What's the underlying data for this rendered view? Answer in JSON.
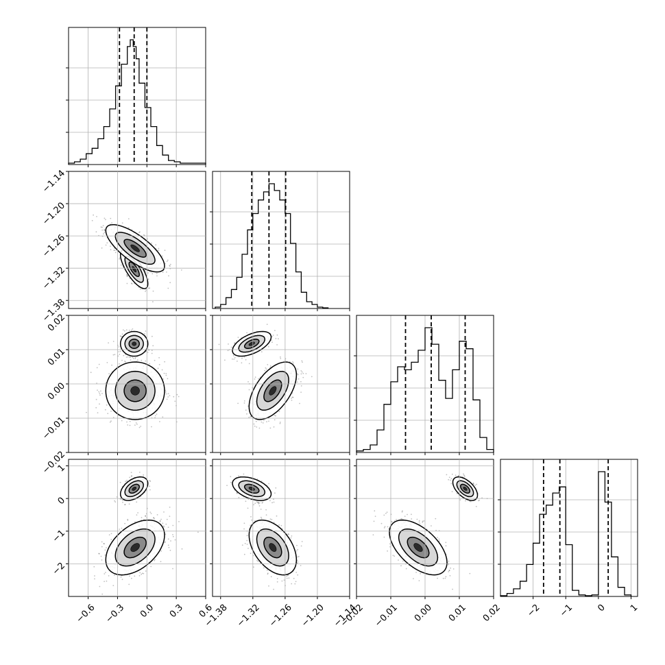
{
  "chart_data": {
    "type": "corner",
    "title": "",
    "parameters": [
      {
        "name": "",
        "range": [
          -0.8,
          0.6
        ],
        "ticks": [
          -0.6,
          -0.3,
          0.0,
          0.3,
          0.6
        ],
        "tick_labels": [
          "−0.6",
          "−0.3",
          "0.0",
          "0.3",
          "0.6"
        ],
        "quantiles": [
          -0.28,
          -0.13,
          0.0
        ],
        "histogram": {
          "bin_edges": [
            -0.8,
            -0.74,
            -0.68,
            -0.62,
            -0.56,
            -0.5,
            -0.44,
            -0.38,
            -0.32,
            -0.26,
            -0.2,
            -0.17,
            -0.14,
            -0.11,
            -0.08,
            -0.02,
            0.04,
            0.1,
            0.16,
            0.22,
            0.28,
            0.34,
            0.6
          ],
          "counts": [
            0.01,
            0.02,
            0.04,
            0.08,
            0.12,
            0.19,
            0.28,
            0.41,
            0.58,
            0.74,
            0.87,
            0.92,
            0.87,
            0.78,
            0.6,
            0.42,
            0.28,
            0.14,
            0.07,
            0.03,
            0.02,
            0.01
          ]
        }
      },
      {
        "name": "",
        "range": [
          -1.395,
          -1.14
        ],
        "ticks": [
          -1.38,
          -1.32,
          -1.26,
          -1.2,
          -1.14
        ],
        "tick_labels": [
          "−1.38",
          "−1.32",
          "−1.26",
          "−1.20",
          "−1.14"
        ],
        "quantiles": [
          -1.322,
          -1.29,
          -1.259
        ],
        "histogram": {
          "bin_edges": [
            -1.39,
            -1.38,
            -1.37,
            -1.36,
            -1.35,
            -1.34,
            -1.33,
            -1.32,
            -1.31,
            -1.3,
            -1.29,
            -1.28,
            -1.27,
            -1.26,
            -1.25,
            -1.24,
            -1.23,
            -1.22,
            -1.21,
            -1.2,
            -1.19,
            -1.18
          ],
          "counts": [
            0.01,
            0.03,
            0.08,
            0.14,
            0.23,
            0.4,
            0.58,
            0.7,
            0.8,
            0.86,
            0.92,
            0.87,
            0.8,
            0.7,
            0.48,
            0.27,
            0.12,
            0.05,
            0.03,
            0.01,
            0.005
          ]
        }
      },
      {
        "name": "",
        "range": [
          -0.02,
          0.02
        ],
        "ticks": [
          -0.02,
          -0.01,
          0.0,
          0.01,
          0.02
        ],
        "tick_labels": [
          "−0.02",
          "−0.01",
          "0.00",
          "0.01",
          "0.02"
        ],
        "quantiles": [
          -0.0057,
          0.0018,
          0.0117
        ],
        "histogram": {
          "bin_edges": [
            -0.02,
            -0.018,
            -0.016,
            -0.014,
            -0.012,
            -0.01,
            -0.008,
            -0.006,
            -0.004,
            -0.002,
            0.0,
            0.002,
            0.004,
            0.006,
            0.008,
            0.01,
            0.012,
            0.014,
            0.016,
            0.018,
            0.02
          ],
          "counts": [
            0.01,
            0.02,
            0.05,
            0.15,
            0.32,
            0.47,
            0.57,
            0.55,
            0.6,
            0.68,
            0.83,
            0.72,
            0.48,
            0.36,
            0.55,
            0.74,
            0.69,
            0.35,
            0.1,
            0.02
          ]
        }
      },
      {
        "name": "",
        "range": [
          -3.0,
          1.2
        ],
        "ticks": [
          -2,
          -1,
          0,
          1
        ],
        "tick_labels": [
          "−2",
          "−1",
          "0",
          "1"
        ],
        "quantiles": [
          -1.68,
          -1.18,
          0.3
        ],
        "histogram": {
          "bin_edges": [
            -3.0,
            -2.8,
            -2.6,
            -2.4,
            -2.2,
            -2.0,
            -1.8,
            -1.6,
            -1.4,
            -1.2,
            -1.0,
            -0.8,
            -0.6,
            -0.4,
            -0.2,
            0.0,
            0.2,
            0.4,
            0.6,
            0.8,
            1.0
          ],
          "counts": [
            0.005,
            0.02,
            0.05,
            0.1,
            0.21,
            0.35,
            0.54,
            0.6,
            0.68,
            0.72,
            0.34,
            0.04,
            0.01,
            0.005,
            0.01,
            0.82,
            0.62,
            0.26,
            0.06,
            0.01
          ]
        }
      }
    ],
    "grid": true,
    "x_tick_label_rotation": 45,
    "y_tick_label_rotation": 45,
    "colors": {
      "ink": "#000000",
      "grid": "#b0b0b0",
      "background": "#ffffff"
    }
  }
}
